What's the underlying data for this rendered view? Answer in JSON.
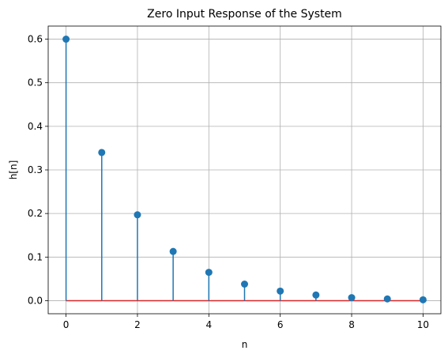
{
  "chart_data": {
    "type": "stem",
    "title": "Zero Input Response of the System",
    "xlabel": "n",
    "ylabel": "h[n]",
    "x": [
      0,
      1,
      2,
      3,
      4,
      5,
      6,
      7,
      8,
      9,
      10
    ],
    "values": [
      0.6,
      0.34,
      0.197,
      0.113,
      0.065,
      0.038,
      0.022,
      0.013,
      0.007,
      0.004,
      0.002
    ],
    "xlim": [
      -0.5,
      10.5
    ],
    "ylim": [
      -0.03,
      0.63
    ],
    "xticks": [
      0,
      2,
      4,
      6,
      8,
      10
    ],
    "yticks": [
      0.0,
      0.1,
      0.2,
      0.3,
      0.4,
      0.5,
      0.6
    ],
    "xtick_labels": [
      "0",
      "2",
      "4",
      "6",
      "8",
      "10"
    ],
    "ytick_labels": [
      "0.0",
      "0.1",
      "0.2",
      "0.3",
      "0.4",
      "0.5",
      "0.6"
    ],
    "grid": true,
    "colors": {
      "stem": "#1f77b4",
      "baseline": "#d62728",
      "grid": "#b0b0b0"
    }
  }
}
